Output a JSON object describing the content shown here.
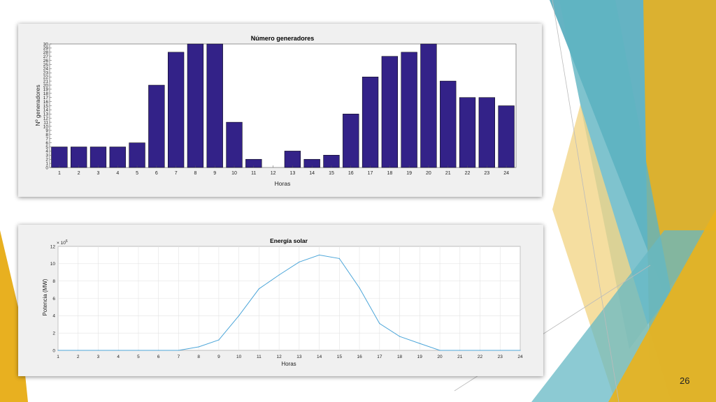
{
  "slide": {
    "page_number": "26"
  },
  "colors": {
    "bar": "#332288",
    "line": "#4da6d9",
    "teal": "#4aa6b8",
    "gold": "#e8b020",
    "pale_gold": "#f3d688"
  },
  "chart_data": [
    {
      "type": "bar",
      "title": "Número generadores",
      "xlabel": "Horas",
      "ylabel": "Nº generadores",
      "categories": [
        1,
        2,
        3,
        4,
        5,
        6,
        7,
        8,
        9,
        10,
        11,
        12,
        13,
        14,
        15,
        16,
        17,
        18,
        19,
        20,
        21,
        22,
        23,
        24
      ],
      "values": [
        5,
        5,
        5,
        5,
        6,
        20,
        28,
        30,
        30,
        11,
        2,
        0,
        4,
        2,
        3,
        13,
        22,
        27,
        28,
        30,
        21,
        17,
        17,
        15
      ],
      "ylim": [
        0,
        30
      ],
      "yticks": [
        0,
        1,
        2,
        3,
        4,
        5,
        6,
        7,
        8,
        9,
        10,
        11,
        12,
        13,
        14,
        15,
        16,
        17,
        18,
        19,
        20,
        21,
        22,
        23,
        24,
        25,
        26,
        27,
        28,
        29,
        30
      ],
      "grid": false,
      "color": "#332288"
    },
    {
      "type": "line",
      "title": "Energía solar",
      "xlabel": "Horas",
      "ylabel": "Potencia (MW)",
      "x": [
        1,
        2,
        3,
        4,
        5,
        6,
        7,
        8,
        9,
        10,
        11,
        12,
        13,
        14,
        15,
        16,
        17,
        18,
        19,
        20,
        21,
        22,
        23,
        24
      ],
      "y": [
        0,
        0,
        0,
        0,
        0,
        0,
        0,
        0.4,
        1.2,
        4,
        7.1,
        8.7,
        10.2,
        11,
        10.6,
        7.2,
        3.1,
        1.6,
        0.8,
        0,
        0,
        0,
        0,
        0
      ],
      "xlim": [
        1,
        24
      ],
      "ylim": [
        0,
        12
      ],
      "yticks": [
        0,
        2,
        4,
        6,
        8,
        10,
        12
      ],
      "y_multiplier_base": "× 10",
      "y_multiplier_exp": "6",
      "grid": true,
      "color": "#4da6d9"
    }
  ]
}
